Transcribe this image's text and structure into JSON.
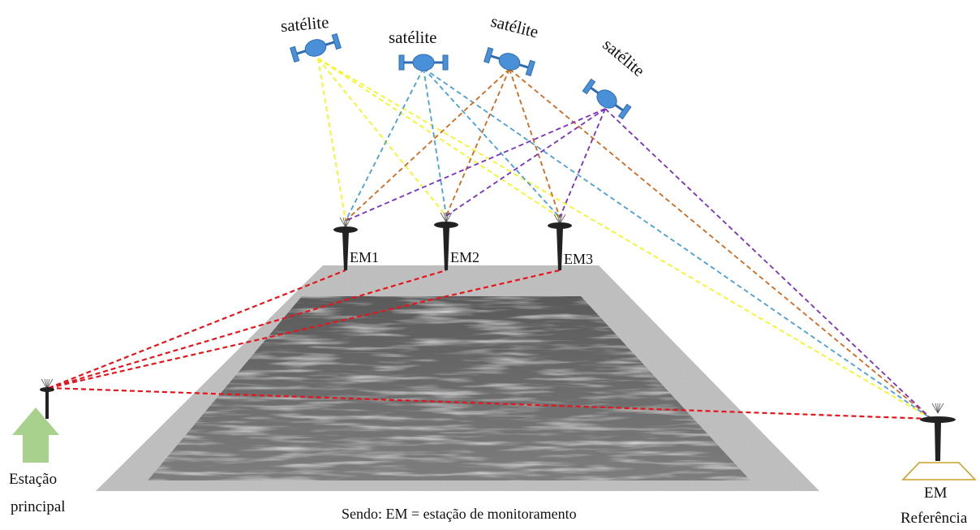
{
  "satellites": [
    {
      "label": "satélite",
      "color": "#f5f520"
    },
    {
      "label": "satélite",
      "color": "#4a9fd8"
    },
    {
      "label": "satélite",
      "color": "#d2691e"
    },
    {
      "label": "satélite",
      "color": "#7b2fbe"
    }
  ],
  "monitoring_stations": [
    {
      "label": "EM1"
    },
    {
      "label": "EM2"
    },
    {
      "label": "EM3"
    }
  ],
  "main_station": {
    "line1": "Estação",
    "line2": "principal",
    "arrow_color": "#a9d18e"
  },
  "reference_station": {
    "line1": "EM",
    "line2": "Referência",
    "base_color": "#c9a227"
  },
  "caption": "Sendo: EM =  estação de monitoramento",
  "colors": {
    "satellite_body": "#4a90d9",
    "satellite_outline": "#2f6db0",
    "ground_link": "#e8141b",
    "tower": "#222222",
    "channel_border": "#9a9a9a",
    "water": "#6f6f6f"
  }
}
